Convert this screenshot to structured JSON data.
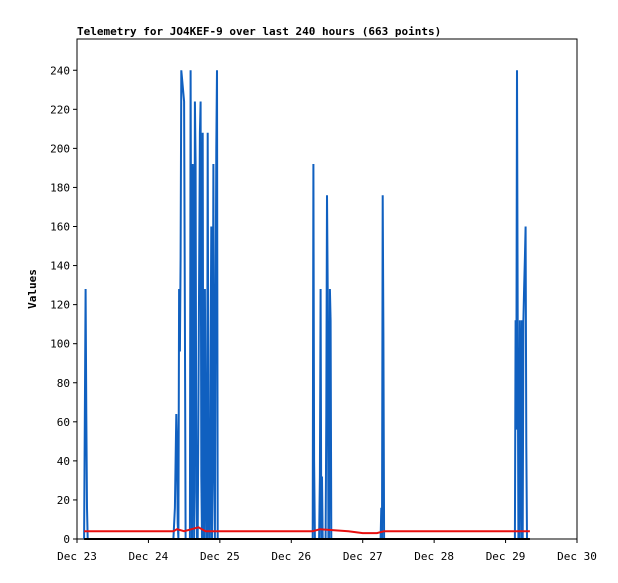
{
  "chart_data": {
    "type": "line",
    "title": "Telemetry for JO4KEF-9 over last 240 hours (663 points)",
    "xlabel": "",
    "ylabel": "Values",
    "x_ticks": [
      "Dec 23",
      "Dec 24",
      "Dec 25",
      "Dec 26",
      "Dec 27",
      "Dec 28",
      "Dec 29",
      "Dec 30"
    ],
    "xlim": [
      0,
      7
    ],
    "ylim": [
      0,
      256
    ],
    "y_ticks": [
      0,
      20,
      40,
      60,
      80,
      100,
      120,
      140,
      160,
      180,
      200,
      220,
      240
    ],
    "grid": false,
    "series": [
      {
        "color": "#1060c0",
        "x": [
          0.1,
          0.12,
          0.13,
          0.14,
          0.15,
          0.16,
          0.17,
          0.18,
          1.35,
          1.37,
          1.38,
          1.39,
          1.4,
          1.41,
          1.42,
          1.43,
          1.44,
          1.45,
          1.46,
          1.5,
          1.51,
          1.52,
          1.53,
          1.54,
          1.55,
          1.56,
          1.57,
          1.58,
          1.59,
          1.6,
          1.61,
          1.62,
          1.63,
          1.64,
          1.65,
          1.66,
          1.67,
          1.68,
          1.69,
          1.72,
          1.73,
          1.74,
          1.75,
          1.76,
          1.77,
          1.78,
          1.79,
          1.8,
          1.81,
          1.82,
          1.83,
          1.84,
          1.85,
          1.86,
          1.87,
          1.88,
          1.89,
          1.9,
          1.91,
          1.92,
          1.93,
          1.94,
          1.95,
          1.96,
          1.97,
          1.98,
          1.99,
          2.0,
          2.01,
          2.02,
          2.03,
          2.04,
          2.05,
          2.06,
          2.07,
          2.08,
          2.09,
          2.1,
          2.11,
          2.12,
          2.13,
          2.14,
          2.15,
          2.16,
          2.17,
          2.18,
          2.19,
          2.2,
          2.21,
          2.22,
          2.23,
          2.24,
          2.25,
          2.26,
          2.27,
          2.28,
          2.29,
          2.3,
          2.31,
          2.32,
          2.33,
          2.34,
          2.35,
          2.36,
          2.37,
          2.38,
          2.39,
          2.4,
          2.41,
          2.42,
          2.43,
          2.44,
          2.45,
          2.46,
          2.47,
          2.48,
          2.49,
          2.5,
          2.51,
          2.52,
          2.53,
          2.54,
          2.55,
          2.56,
          2.57,
          3.3,
          3.31,
          3.32,
          3.33,
          3.38,
          3.39,
          3.4,
          3.41,
          3.42,
          3.43,
          3.44,
          3.45,
          3.48,
          3.49,
          3.5,
          3.51,
          3.52,
          3.53,
          3.54,
          3.55,
          3.56,
          3.57,
          3.58,
          4.15,
          4.18,
          4.2,
          4.22,
          4.23,
          4.24,
          4.25,
          4.26,
          4.27,
          4.28,
          4.29,
          4.3,
          6.1,
          6.11,
          6.12,
          6.13,
          6.14,
          6.15,
          6.16,
          6.17,
          6.18,
          6.19,
          6.2,
          6.21,
          6.22,
          6.23,
          6.24,
          6.25,
          6.26,
          6.27,
          6.28,
          6.29,
          6.3,
          6.31,
          6.32,
          6.33,
          6.34
        ],
        "y": [
          0,
          128,
          64,
          16,
          0,
          0,
          0,
          0,
          0,
          16,
          40,
          64,
          48,
          8,
          0,
          128,
          96,
          144,
          240,
          224,
          112,
          0,
          0,
          0,
          0,
          0,
          0,
          0,
          240,
          104,
          0,
          192,
          176,
          0,
          224,
          192,
          24,
          0,
          0,
          208,
          224,
          32,
          0,
          208,
          0,
          0,
          128,
          48,
          0,
          0,
          208,
          48,
          0,
          0,
          96,
          160,
          0,
          64,
          192,
          40,
          0,
          120,
          200,
          240,
          0,
          0,
          0,
          0,
          0,
          0,
          0,
          0,
          0,
          0,
          0,
          0,
          0,
          0,
          0,
          0,
          0,
          0,
          0,
          0,
          0,
          0,
          0,
          0,
          0,
          0,
          0,
          0,
          0,
          0,
          0,
          0,
          0,
          0,
          0,
          0,
          0,
          0,
          0,
          0,
          0,
          0,
          0,
          0,
          0,
          0,
          0,
          0,
          0,
          0,
          0,
          0,
          0,
          0,
          0,
          0,
          0,
          0,
          0,
          0,
          0,
          0,
          192,
          40,
          0,
          0,
          0,
          32,
          128,
          0,
          32,
          0,
          0,
          0,
          64,
          176,
          128,
          0,
          0,
          128,
          112,
          0,
          0,
          0,
          0,
          0,
          0,
          0,
          0,
          0,
          0,
          16,
          0,
          176,
          104,
          0,
          0,
          0,
          0,
          0,
          112,
          56,
          240,
          112,
          0,
          0,
          112,
          64,
          0,
          112,
          0,
          112,
          128,
          144,
          160,
          48,
          0,
          0,
          0,
          0,
          0
        ]
      },
      {
        "color": "#e81010",
        "x": [
          0.1,
          1.35,
          1.4,
          1.5,
          1.7,
          1.8,
          2.0,
          2.5,
          3.0,
          3.3,
          3.4,
          3.8,
          4.0,
          4.2,
          4.3,
          5.0,
          6.0,
          6.34
        ],
        "y": [
          4,
          4,
          5,
          4,
          6,
          4,
          4,
          4,
          4,
          4,
          5,
          4,
          3,
          3,
          4,
          4,
          4,
          4
        ]
      },
      {
        "color": "#000000",
        "x": [
          0.1,
          6.34
        ],
        "y": [
          0,
          0
        ]
      }
    ]
  }
}
